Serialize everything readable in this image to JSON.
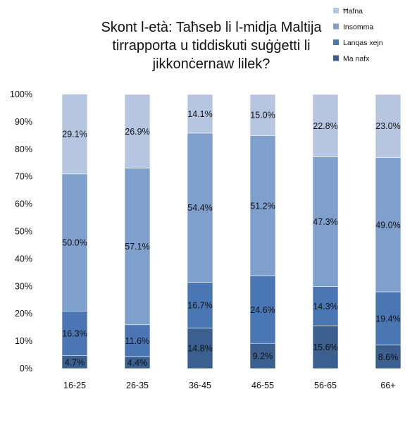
{
  "chart_data": {
    "type": "bar",
    "stacked": true,
    "title": "Skont l-età: Taħseb li l-midja Maltija tirrapporta u tiddiskuti suġġetti li jikkonċernaw lilek?",
    "categories": [
      "16-25",
      "26-35",
      "36-45",
      "46-55",
      "56-65",
      "66+"
    ],
    "series": [
      {
        "name": "Ma nafx",
        "color": "#3b5f8f",
        "values": [
          4.7,
          4.4,
          14.8,
          9.2,
          15.6,
          8.6
        ]
      },
      {
        "name": "Lanqas xejn",
        "color": "#4a77b4",
        "values": [
          16.3,
          11.6,
          16.7,
          24.6,
          14.3,
          19.4
        ]
      },
      {
        "name": "Insomma",
        "color": "#7f9fcd",
        "values": [
          50.0,
          57.1,
          54.4,
          51.2,
          47.3,
          49.0
        ]
      },
      {
        "name": "Ħafna",
        "color": "#b7c6e0",
        "values": [
          29.1,
          26.9,
          14.1,
          15.0,
          22.8,
          23.0
        ]
      }
    ],
    "data_labels": [
      [
        "4.7%",
        "4.4%",
        "14.8%",
        "9.2%",
        "15.6%",
        "8.6%"
      ],
      [
        "16.3%",
        "11.6%",
        "16.7%",
        "24.6%",
        "14.3%",
        "19.4%"
      ],
      [
        "50.0%",
        "57.1%",
        "54.4%",
        "51.2%",
        "47.3%",
        "49.0%"
      ],
      [
        "29.1%",
        "26.9%",
        "14.1%",
        "15.0%",
        "22.8%",
        "23.0%"
      ]
    ],
    "legend_order": [
      "Ħafna",
      "Insomma",
      "Lanqas xejn",
      "Ma nafx"
    ],
    "legend_position": "top-right",
    "ylim": [
      0,
      100
    ],
    "yticks": [
      "0%",
      "10%",
      "20%",
      "30%",
      "40%",
      "50%",
      "60%",
      "70%",
      "80%",
      "90%",
      "100%"
    ],
    "grid": false,
    "xlabel": "",
    "ylabel": ""
  }
}
